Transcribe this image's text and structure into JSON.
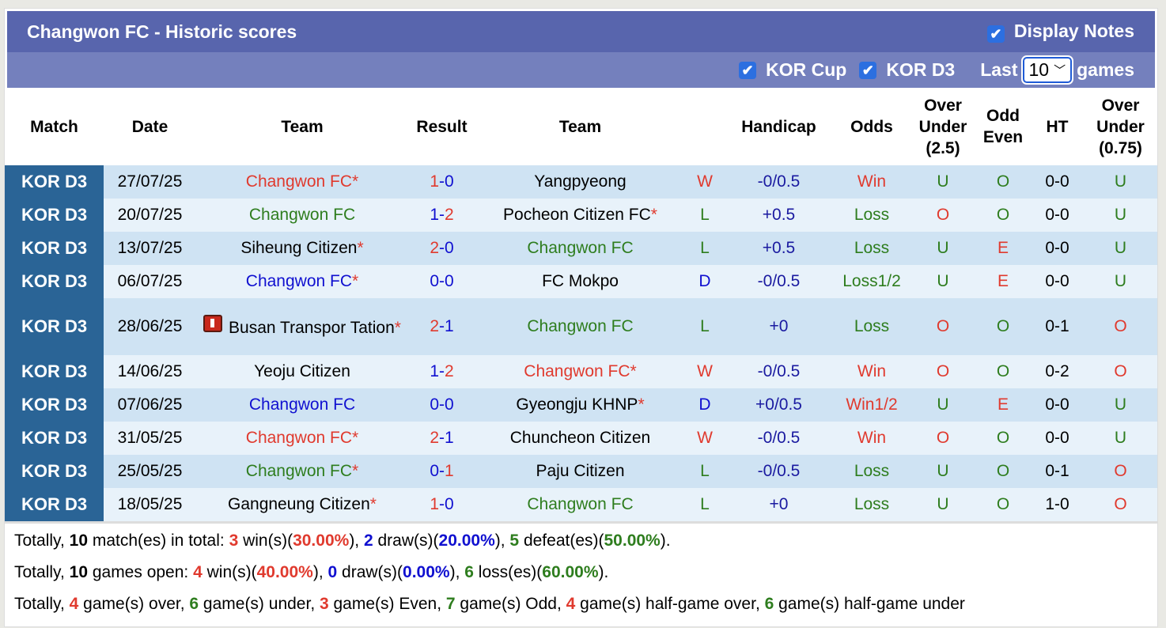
{
  "title": "Changwon FC - Historic scores",
  "display_notes": {
    "label": "Display Notes",
    "checked": true
  },
  "filters": {
    "kor_cup": {
      "label": "KOR Cup",
      "checked": true
    },
    "kor_d3": {
      "label": "KOR D3",
      "checked": true
    },
    "last_label": "Last",
    "games_value": "10",
    "games_label": "games"
  },
  "columns": [
    "Match",
    "Date",
    "Team",
    "Result",
    "Team",
    "",
    "Handicap",
    "Odds",
    "Over Under (2.5)",
    "Odd Even",
    "HT",
    "Over Under (0.75)"
  ],
  "colors": {
    "title_bar": "#5865ad",
    "filter_bar": "#7480bd",
    "match_cell": "#2a6496",
    "win": "#e03a2e",
    "loss": "#2e7d1e",
    "draw": "#1010d0"
  },
  "rows": [
    {
      "match": "KOR D3",
      "date": "27/07/25",
      "home": "Changwon FC",
      "home_color": "red",
      "home_star": "*",
      "score": "1-0",
      "away": "Yangpyeong",
      "away_color": "black",
      "away_star": "",
      "res": "W",
      "hcp": "-0/0.5",
      "odds": "Win",
      "ou": "U",
      "oe": "O",
      "ht": "0-0",
      "ou2": "U"
    },
    {
      "match": "KOR D3",
      "date": "20/07/25",
      "home": "Changwon FC",
      "home_color": "green",
      "home_star": "",
      "score": "1-2",
      "away": "Pocheon Citizen FC",
      "away_color": "black",
      "away_star": "*",
      "res": "L",
      "hcp": "+0.5",
      "odds": "Loss",
      "ou": "O",
      "oe": "O",
      "ht": "0-0",
      "ou2": "U"
    },
    {
      "match": "KOR D3",
      "date": "13/07/25",
      "home": "Siheung Citizen",
      "home_color": "black",
      "home_star": "*",
      "score": "2-0",
      "away": "Changwon FC",
      "away_color": "green",
      "away_star": "",
      "res": "L",
      "hcp": "+0.5",
      "odds": "Loss",
      "ou": "U",
      "oe": "E",
      "ht": "0-0",
      "ou2": "U"
    },
    {
      "match": "KOR D3",
      "date": "06/07/25",
      "home": "Changwon FC",
      "home_color": "blue",
      "home_star": "*",
      "score": "0-0",
      "away": "FC Mokpo",
      "away_color": "black",
      "away_star": "",
      "res": "D",
      "hcp": "-0/0.5",
      "odds": "Loss1/2",
      "ou": "U",
      "oe": "E",
      "ht": "0-0",
      "ou2": "U"
    },
    {
      "match": "KOR D3",
      "date": "28/06/25",
      "home": "Busan Transpor Tation",
      "home_icon": "red-card-icon",
      "home_color": "black",
      "home_star": "*",
      "score": "2-1",
      "away": "Changwon FC",
      "away_color": "green",
      "away_star": "",
      "res": "L",
      "hcp": "+0",
      "odds": "Loss",
      "ou": "O",
      "oe": "O",
      "ht": "0-1",
      "ou2": "O"
    },
    {
      "match": "KOR D3",
      "date": "14/06/25",
      "home": "Yeoju Citizen",
      "home_color": "black",
      "home_star": "",
      "score": "1-2",
      "away": "Changwon FC",
      "away_color": "red",
      "away_star": "*",
      "res": "W",
      "hcp": "-0/0.5",
      "odds": "Win",
      "ou": "O",
      "oe": "O",
      "ht": "0-2",
      "ou2": "O"
    },
    {
      "match": "KOR D3",
      "date": "07/06/25",
      "home": "Changwon FC",
      "home_color": "blue",
      "home_star": "",
      "score": "0-0",
      "away": "Gyeongju KHNP",
      "away_color": "black",
      "away_star": "*",
      "res": "D",
      "hcp": "+0/0.5",
      "odds": "Win1/2",
      "ou": "U",
      "oe": "E",
      "ht": "0-0",
      "ou2": "U"
    },
    {
      "match": "KOR D3",
      "date": "31/05/25",
      "home": "Changwon FC",
      "home_color": "red",
      "home_star": "*",
      "score": "2-1",
      "away": "Chuncheon Citizen",
      "away_color": "black",
      "away_star": "",
      "res": "W",
      "hcp": "-0/0.5",
      "odds": "Win",
      "ou": "O",
      "oe": "O",
      "ht": "0-0",
      "ou2": "U"
    },
    {
      "match": "KOR D3",
      "date": "25/05/25",
      "home": "Changwon FC",
      "home_color": "green",
      "home_star": "*",
      "score": "0-1",
      "away": "Paju Citizen",
      "away_color": "black",
      "away_star": "",
      "res": "L",
      "hcp": "-0/0.5",
      "odds": "Loss",
      "ou": "U",
      "oe": "O",
      "ht": "0-1",
      "ou2": "O"
    },
    {
      "match": "KOR D3",
      "date": "18/05/25",
      "home": "Gangneung Citizen",
      "home_color": "black",
      "home_star": "*",
      "score": "1-0",
      "away": "Changwon FC",
      "away_color": "green",
      "away_star": "",
      "res": "L",
      "hcp": "+0",
      "odds": "Loss",
      "ou": "U",
      "oe": "O",
      "ht": "1-0",
      "ou2": "O"
    }
  ],
  "summary": [
    [
      [
        "Totally, ",
        "black",
        0
      ],
      [
        "10",
        "black",
        1
      ],
      [
        " match(es) in total: ",
        "black",
        0
      ],
      [
        "3",
        "red",
        1
      ],
      [
        " win(s)(",
        "black",
        0
      ],
      [
        "30.00%",
        "red",
        1
      ],
      [
        "), ",
        "black",
        0
      ],
      [
        "2",
        "blue",
        1
      ],
      [
        " draw(s)(",
        "black",
        0
      ],
      [
        "20.00%",
        "blue",
        1
      ],
      [
        "), ",
        "black",
        0
      ],
      [
        "5",
        "green",
        1
      ],
      [
        " defeat(es)(",
        "black",
        0
      ],
      [
        "50.00%",
        "green",
        1
      ],
      [
        ").",
        "black",
        0
      ]
    ],
    [
      [
        "Totally, ",
        "black",
        0
      ],
      [
        "10",
        "black",
        1
      ],
      [
        " games open: ",
        "black",
        0
      ],
      [
        "4",
        "red",
        1
      ],
      [
        " win(s)(",
        "black",
        0
      ],
      [
        "40.00%",
        "red",
        1
      ],
      [
        "), ",
        "black",
        0
      ],
      [
        "0",
        "blue",
        1
      ],
      [
        " draw(s)(",
        "black",
        0
      ],
      [
        "0.00%",
        "blue",
        1
      ],
      [
        "), ",
        "black",
        0
      ],
      [
        "6",
        "green",
        1
      ],
      [
        " loss(es)(",
        "black",
        0
      ],
      [
        "60.00%",
        "green",
        1
      ],
      [
        ").",
        "black",
        0
      ]
    ],
    [
      [
        "Totally, ",
        "black",
        0
      ],
      [
        "4",
        "red",
        1
      ],
      [
        " game(s) over, ",
        "black",
        0
      ],
      [
        "6",
        "green",
        1
      ],
      [
        " game(s) under, ",
        "black",
        0
      ],
      [
        "3",
        "red",
        1
      ],
      [
        " game(s) Even, ",
        "black",
        0
      ],
      [
        "7",
        "green",
        1
      ],
      [
        " game(s) Odd, ",
        "black",
        0
      ],
      [
        "4",
        "red",
        1
      ],
      [
        " game(s) half-game over, ",
        "black",
        0
      ],
      [
        "6",
        "green",
        1
      ],
      [
        " game(s) half-game under",
        "black",
        0
      ]
    ]
  ]
}
